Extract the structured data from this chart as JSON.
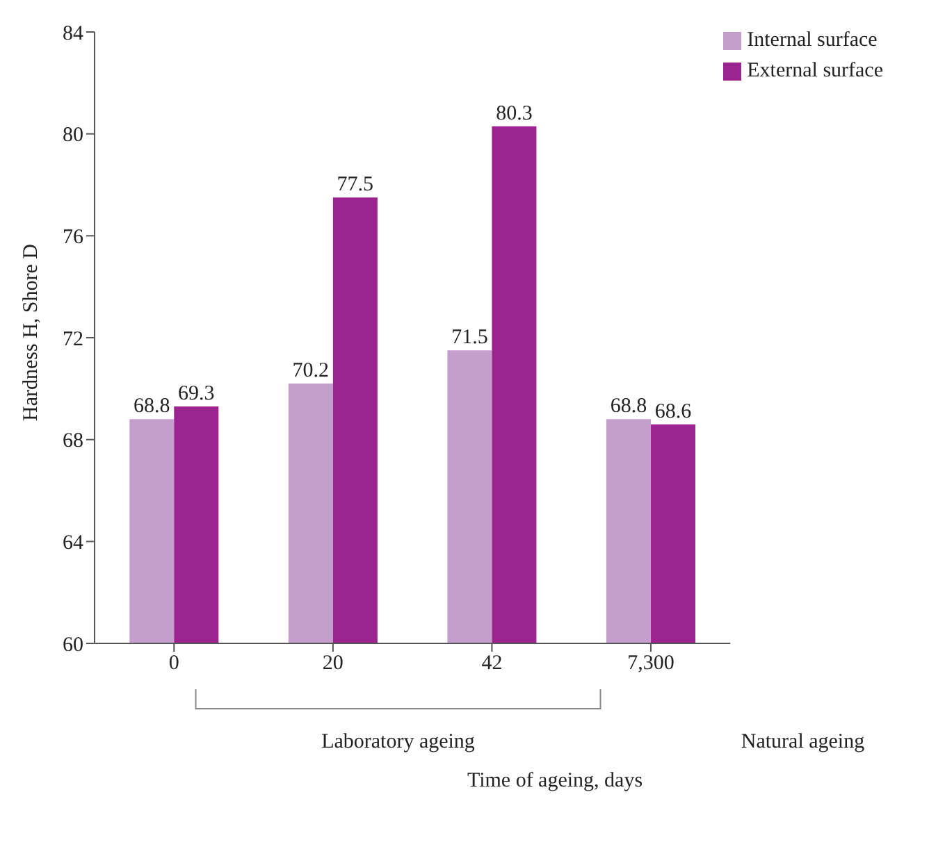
{
  "chart_data": {
    "type": "bar",
    "xlabel": "Time of ageing, days",
    "ylabel": "Hardness H, Shore D",
    "categories": [
      "0",
      "20",
      "42",
      "7,300"
    ],
    "series": [
      {
        "name": "Internal surface",
        "color": "#c49fcd",
        "values": [
          68.8,
          70.2,
          71.5,
          68.8
        ]
      },
      {
        "name": "External surface",
        "color": "#9c2491",
        "values": [
          69.3,
          77.5,
          80.3,
          68.6
        ]
      }
    ],
    "ylim": [
      60,
      84
    ],
    "yticks": [
      60,
      64,
      68,
      72,
      76,
      80,
      84
    ],
    "grid": false,
    "legend": "top right",
    "data_labels": true,
    "annotations": [
      "Laboratory ageing",
      "Natural ageing"
    ]
  }
}
